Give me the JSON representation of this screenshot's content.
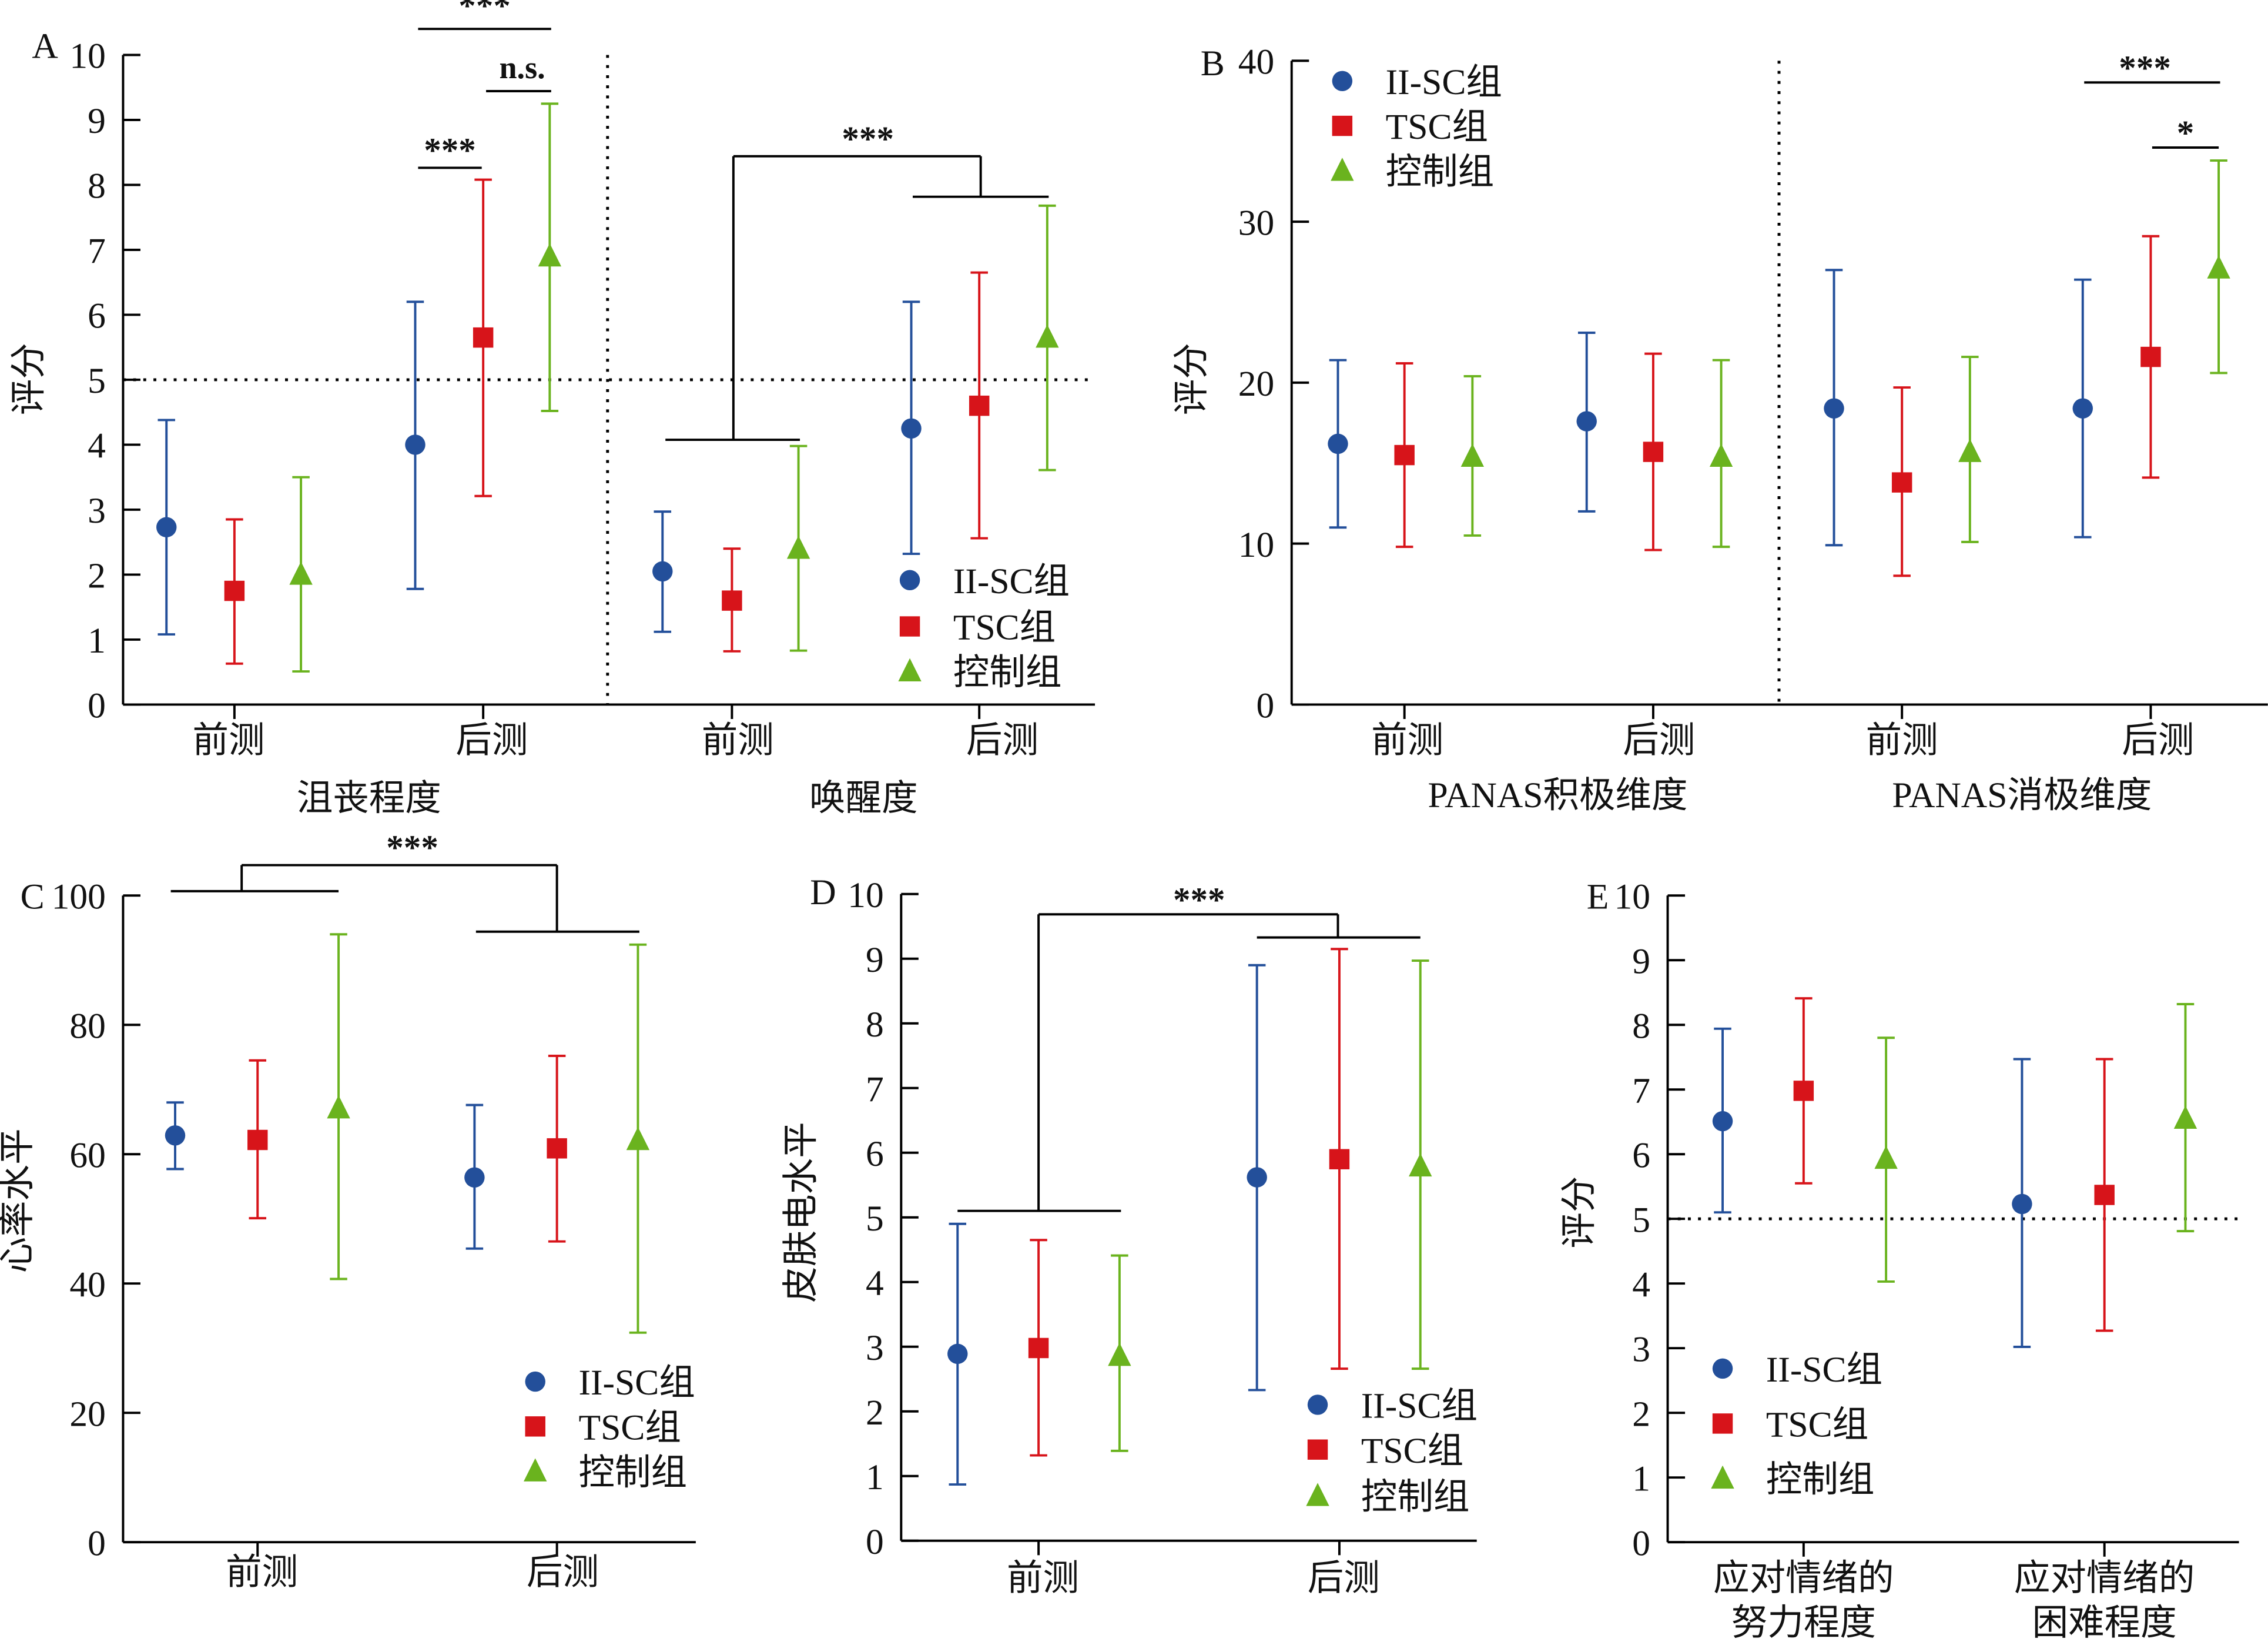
{
  "colors": {
    "II-SC组": "#234f9a",
    "TSC组": "#d7141a",
    "控制组": "#6ab31e"
  },
  "chart_data": [
    {
      "panel": "A",
      "type": "scatter",
      "error_bars": true,
      "ylabel": "评分",
      "ylim": [
        0,
        10
      ],
      "yticks": [
        0,
        1,
        2,
        3,
        4,
        5,
        6,
        7,
        8,
        9,
        10
      ],
      "reference_line": 5,
      "groups": [
        {
          "label": "沮丧程度",
          "categories": [
            "前测",
            "后测"
          ]
        },
        {
          "label": "唤醒度",
          "categories": [
            "前测",
            "后测"
          ]
        }
      ],
      "legend": "bottom-right",
      "series": [
        {
          "name": "II-SC组",
          "marker": "circle",
          "points": [
            {
              "mean": 2.73,
              "lower": 1.08,
              "upper": 4.38
            },
            {
              "mean": 4.0,
              "lower": 1.78,
              "upper": 6.2
            },
            {
              "mean": 2.05,
              "lower": 1.12,
              "upper": 2.97
            },
            {
              "mean": 4.25,
              "lower": 2.32,
              "upper": 6.2
            }
          ]
        },
        {
          "name": "TSC组",
          "marker": "square",
          "points": [
            {
              "mean": 1.75,
              "lower": 0.63,
              "upper": 2.85
            },
            {
              "mean": 5.65,
              "lower": 3.21,
              "upper": 8.08
            },
            {
              "mean": 1.6,
              "lower": 0.82,
              "upper": 2.4
            },
            {
              "mean": 4.6,
              "lower": 2.56,
              "upper": 6.65
            }
          ]
        },
        {
          "name": "控制组",
          "marker": "triangle",
          "points": [
            {
              "mean": 2.0,
              "lower": 0.51,
              "upper": 3.5
            },
            {
              "mean": 6.9,
              "lower": 4.52,
              "upper": 9.25
            },
            {
              "mean": 2.4,
              "lower": 0.83,
              "upper": 3.98
            },
            {
              "mean": 5.65,
              "lower": 3.61,
              "upper": 7.68
            }
          ]
        }
      ],
      "annotations": [
        "***",
        "n.s.",
        "***",
        "***"
      ]
    },
    {
      "panel": "B",
      "type": "scatter",
      "error_bars": true,
      "ylabel": "评分",
      "ylim": [
        0,
        40
      ],
      "yticks": [
        0,
        10,
        20,
        30,
        40
      ],
      "groups": [
        {
          "label": "PANAS积极维度",
          "categories": [
            "前测",
            "后测"
          ]
        },
        {
          "label": "PANAS消极维度",
          "categories": [
            "前测",
            "后测"
          ]
        }
      ],
      "legend": "top-left",
      "series": [
        {
          "name": "II-SC组",
          "marker": "circle",
          "points": [
            {
              "mean": 16.2,
              "lower": 11.0,
              "upper": 21.4
            },
            {
              "mean": 17.6,
              "lower": 12.0,
              "upper": 23.1
            },
            {
              "mean": 18.4,
              "lower": 9.9,
              "upper": 27.0
            },
            {
              "mean": 18.4,
              "lower": 10.4,
              "upper": 26.4
            }
          ]
        },
        {
          "name": "TSC组",
          "marker": "square",
          "points": [
            {
              "mean": 15.5,
              "lower": 9.8,
              "upper": 21.2
            },
            {
              "mean": 15.7,
              "lower": 9.6,
              "upper": 21.8
            },
            {
              "mean": 13.8,
              "lower": 8.0,
              "upper": 19.7
            },
            {
              "mean": 21.6,
              "lower": 14.1,
              "upper": 29.1
            }
          ]
        },
        {
          "name": "控制组",
          "marker": "triangle",
          "points": [
            {
              "mean": 15.4,
              "lower": 10.5,
              "upper": 20.4
            },
            {
              "mean": 15.4,
              "lower": 9.8,
              "upper": 21.4
            },
            {
              "mean": 15.7,
              "lower": 10.1,
              "upper": 21.6
            },
            {
              "mean": 27.1,
              "lower": 20.6,
              "upper": 33.8
            }
          ]
        }
      ],
      "annotations": [
        "***",
        "*"
      ]
    },
    {
      "panel": "C",
      "type": "scatter",
      "error_bars": true,
      "ylabel": "心率水平",
      "ylim": [
        0,
        100
      ],
      "yticks": [
        0,
        20,
        40,
        60,
        80,
        100
      ],
      "groups": [
        {
          "label": "",
          "categories": [
            "前测",
            "后测"
          ]
        }
      ],
      "legend": "bottom-right",
      "series": [
        {
          "name": "II-SC组",
          "marker": "circle",
          "points": [
            {
              "mean": 62.9,
              "lower": 57.7,
              "upper": 68.0
            },
            {
              "mean": 56.4,
              "lower": 45.4,
              "upper": 67.6
            }
          ]
        },
        {
          "name": "TSC组",
          "marker": "square",
          "points": [
            {
              "mean": 62.2,
              "lower": 50.1,
              "upper": 74.5
            },
            {
              "mean": 60.9,
              "lower": 46.5,
              "upper": 75.2
            }
          ]
        },
        {
          "name": "控制组",
          "marker": "triangle",
          "points": [
            {
              "mean": 67.1,
              "lower": 40.7,
              "upper": 94.0
            },
            {
              "mean": 62.2,
              "lower": 32.4,
              "upper": 92.4
            }
          ]
        }
      ],
      "annotations": [
        "***"
      ]
    },
    {
      "panel": "D",
      "type": "scatter",
      "error_bars": true,
      "ylabel": "皮肤电水平",
      "ylim": [
        0,
        10
      ],
      "yticks": [
        0,
        1,
        2,
        3,
        4,
        5,
        6,
        7,
        8,
        9,
        10
      ],
      "groups": [
        {
          "label": "",
          "categories": [
            "前测",
            "后测"
          ]
        }
      ],
      "legend": "bottom-right",
      "series": [
        {
          "name": "II-SC组",
          "marker": "circle",
          "points": [
            {
              "mean": 2.89,
              "lower": 0.87,
              "upper": 4.9
            },
            {
              "mean": 5.62,
              "lower": 2.33,
              "upper": 8.9
            }
          ]
        },
        {
          "name": "TSC组",
          "marker": "square",
          "points": [
            {
              "mean": 2.98,
              "lower": 1.32,
              "upper": 4.65
            },
            {
              "mean": 5.9,
              "lower": 2.66,
              "upper": 9.15
            }
          ]
        },
        {
          "name": "控制组",
          "marker": "triangle",
          "points": [
            {
              "mean": 2.86,
              "lower": 1.39,
              "upper": 4.41
            },
            {
              "mean": 5.79,
              "lower": 2.66,
              "upper": 8.97
            }
          ]
        }
      ],
      "annotations": [
        "***"
      ]
    },
    {
      "panel": "E",
      "type": "scatter",
      "error_bars": true,
      "ylabel": "评分",
      "ylim": [
        0,
        10
      ],
      "yticks": [
        0,
        1,
        2,
        3,
        4,
        5,
        6,
        7,
        8,
        9,
        10
      ],
      "reference_line": 5,
      "groups": [
        {
          "label": "",
          "categories": [
            [
              "应对情绪的",
              "努力程度"
            ],
            [
              "应对情绪的",
              "困难程度"
            ]
          ]
        }
      ],
      "legend": "bottom-left",
      "series": [
        {
          "name": "II-SC组",
          "marker": "circle",
          "points": [
            {
              "mean": 6.51,
              "lower": 5.1,
              "upper": 7.94
            },
            {
              "mean": 5.23,
              "lower": 3.02,
              "upper": 7.47
            }
          ]
        },
        {
          "name": "TSC组",
          "marker": "square",
          "points": [
            {
              "mean": 6.98,
              "lower": 5.55,
              "upper": 8.41
            },
            {
              "mean": 5.37,
              "lower": 3.27,
              "upper": 7.47
            }
          ]
        },
        {
          "name": "控制组",
          "marker": "triangle",
          "points": [
            {
              "mean": 5.93,
              "lower": 4.03,
              "upper": 7.8
            },
            {
              "mean": 6.55,
              "lower": 4.81,
              "upper": 8.32
            }
          ]
        }
      ],
      "annotations": []
    }
  ]
}
